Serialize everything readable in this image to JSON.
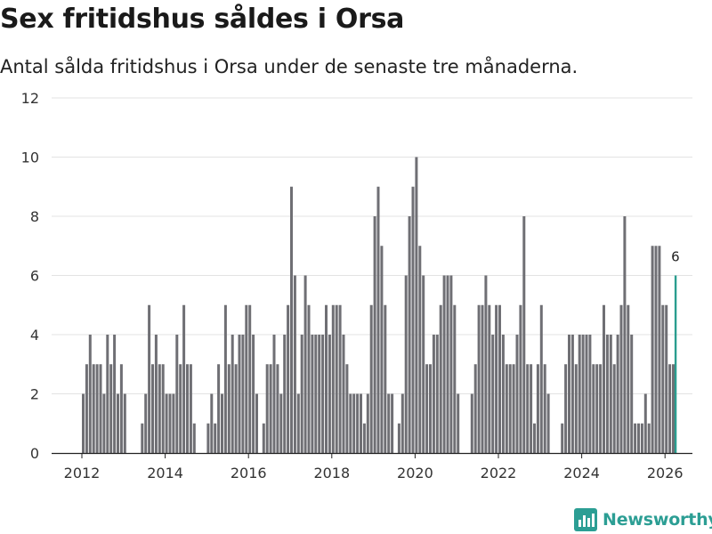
{
  "title": "Sex fritidshus såldes i Orsa",
  "subtitle": "Antal sålda fritidshus i Orsa under de senaste tre månaderna.",
  "logo": {
    "text": "Newsworthy",
    "icon": "bar-chart-logo-icon"
  },
  "colors": {
    "bar": "#6f6f74",
    "highlight": "#2a9d8f",
    "grid": "#e3e3e3",
    "baseline": "#222222",
    "brand": "#2c9e94"
  },
  "chart_data": {
    "type": "bar",
    "title": "Sex fritidshus såldes i Orsa",
    "xlabel": "",
    "ylabel": "",
    "ylim": [
      0,
      12
    ],
    "yticks": [
      0,
      2,
      4,
      6,
      8,
      10,
      12
    ],
    "xticks": [
      "2012",
      "2014",
      "2016",
      "2018",
      "2020",
      "2022",
      "2024",
      "2026"
    ],
    "start": "2012-01",
    "frequency": "monthly",
    "highlight_last": true,
    "last_label": "6",
    "values": [
      2,
      3,
      4,
      3,
      3,
      3,
      2,
      4,
      3,
      4,
      2,
      3,
      2,
      0,
      0,
      0,
      0,
      1,
      2,
      5,
      3,
      4,
      3,
      3,
      2,
      2,
      2,
      4,
      3,
      5,
      3,
      3,
      1,
      0,
      0,
      0,
      1,
      2,
      1,
      3,
      2,
      5,
      3,
      4,
      3,
      4,
      4,
      5,
      5,
      4,
      2,
      0,
      1,
      3,
      3,
      4,
      3,
      2,
      4,
      5,
      9,
      6,
      2,
      4,
      6,
      5,
      4,
      4,
      4,
      4,
      5,
      4,
      5,
      5,
      5,
      4,
      3,
      2,
      2,
      2,
      2,
      1,
      2,
      5,
      8,
      9,
      7,
      5,
      2,
      2,
      0,
      1,
      2,
      6,
      8,
      9,
      10,
      7,
      6,
      3,
      3,
      4,
      4,
      5,
      6,
      6,
      6,
      5,
      2,
      0,
      0,
      0,
      2,
      3,
      5,
      5,
      6,
      5,
      4,
      5,
      5,
      4,
      3,
      3,
      3,
      4,
      5,
      8,
      3,
      3,
      1,
      3,
      5,
      3,
      2,
      0,
      0,
      0,
      1,
      3,
      4,
      4,
      3,
      4,
      4,
      4,
      4,
      3,
      3,
      3,
      5,
      4,
      4,
      3,
      4,
      5,
      8,
      5,
      4,
      1,
      1,
      1,
      2,
      1,
      7,
      7,
      7,
      5,
      5,
      3,
      3,
      6
    ]
  }
}
